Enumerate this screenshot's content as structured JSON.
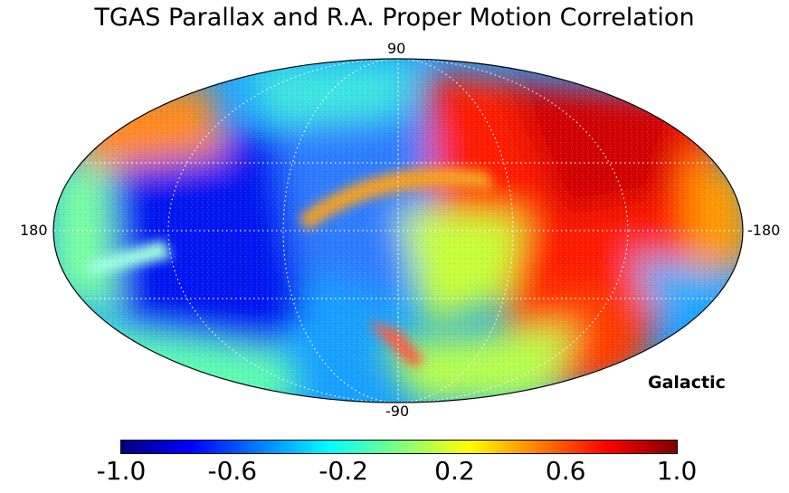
{
  "title": "TGAS Parallax and R.A. Proper Motion Correlation",
  "coordinate_system": "Galactic",
  "axis_labels": {
    "top": "90",
    "bottom": "-90",
    "left": "180",
    "right": "-180"
  },
  "projection": "mollweide",
  "colormap": "jet",
  "colorbar": {
    "range": [
      -1.0,
      1.0
    ],
    "ticks": [
      "-1.0",
      "-0.6",
      "-0.2",
      "0.2",
      "0.6",
      "1.0"
    ]
  }
}
